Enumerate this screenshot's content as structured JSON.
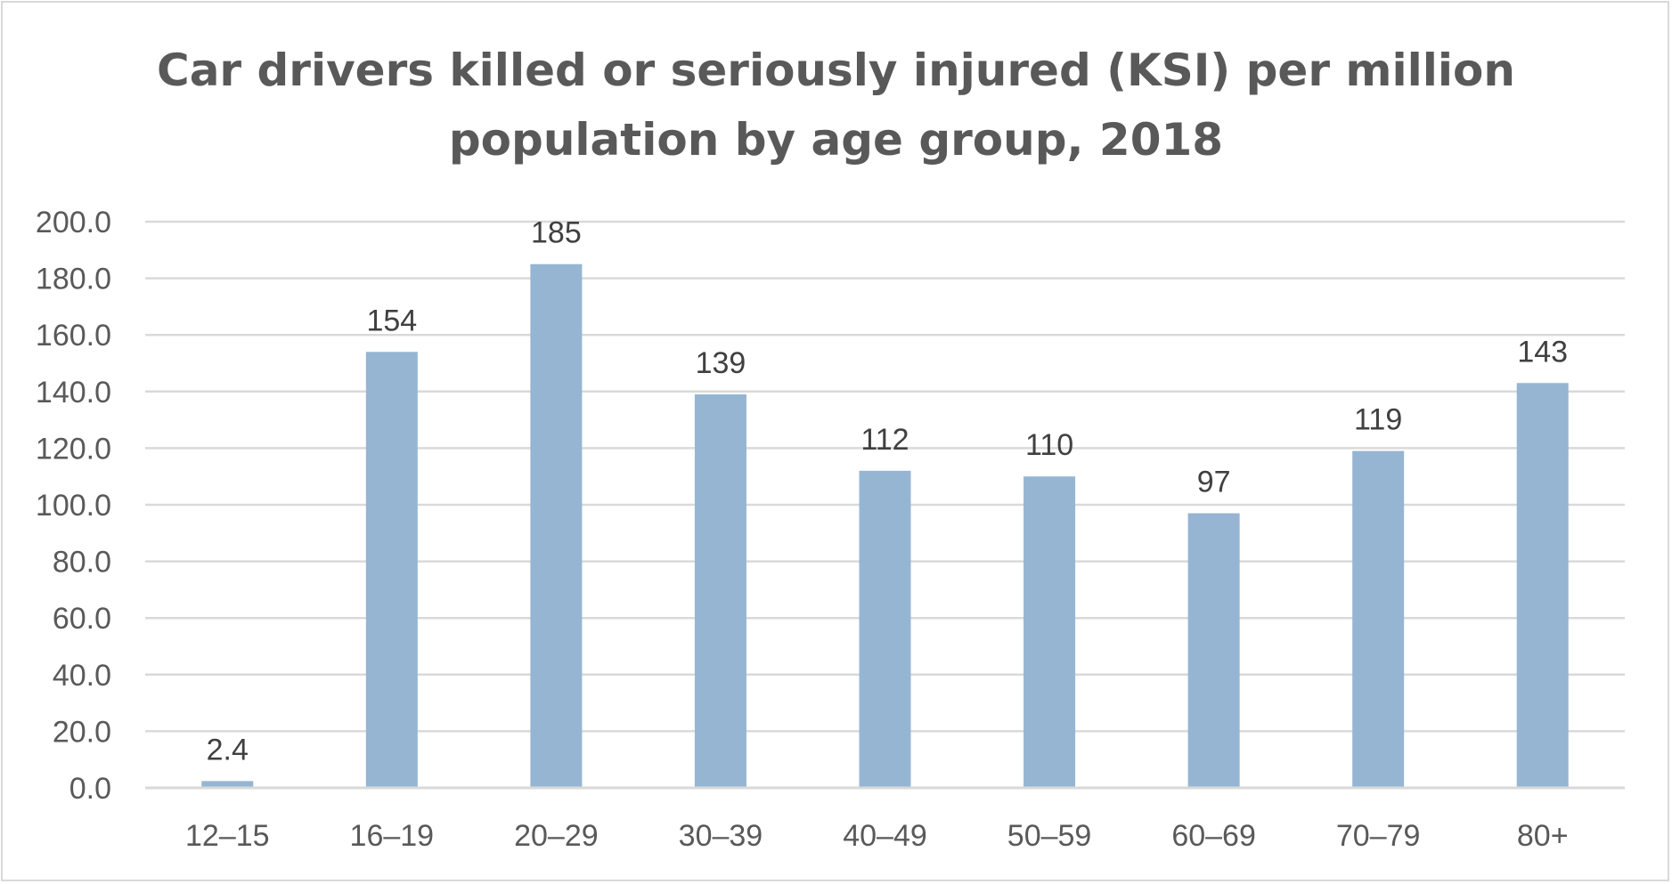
{
  "chart_data": {
    "type": "bar",
    "title": "Car drivers killed or seriously injured (KSI) per million population by age group, 2018",
    "title_lines": [
      "Car drivers killed or seriously injured (KSI) per million",
      "population by age group, 2018"
    ],
    "xlabel": "",
    "ylabel": "",
    "categories": [
      "12–15",
      "16–19",
      "20–29",
      "30–39",
      "40–49",
      "50–59",
      "60–69",
      "70–79",
      "80+"
    ],
    "values": [
      2.4,
      154,
      185,
      139,
      112,
      110,
      97,
      119,
      143
    ],
    "data_labels": [
      "2.4",
      "154",
      "185",
      "139",
      "112",
      "110",
      "97",
      "119",
      "143"
    ],
    "ylim": [
      0,
      200
    ],
    "y_ticks": [
      0,
      20,
      40,
      60,
      80,
      100,
      120,
      140,
      160,
      180,
      200
    ],
    "y_tick_labels": [
      "0.0",
      "20.0",
      "40.0",
      "60.0",
      "80.0",
      "100.0",
      "120.0",
      "140.0",
      "160.0",
      "180.0",
      "200.0"
    ],
    "grid": true,
    "legend": "none",
    "colors": {
      "bar": "#95b5d3",
      "grid": "#d9d9d9",
      "text": "#595959",
      "data_label": "#404040"
    }
  }
}
